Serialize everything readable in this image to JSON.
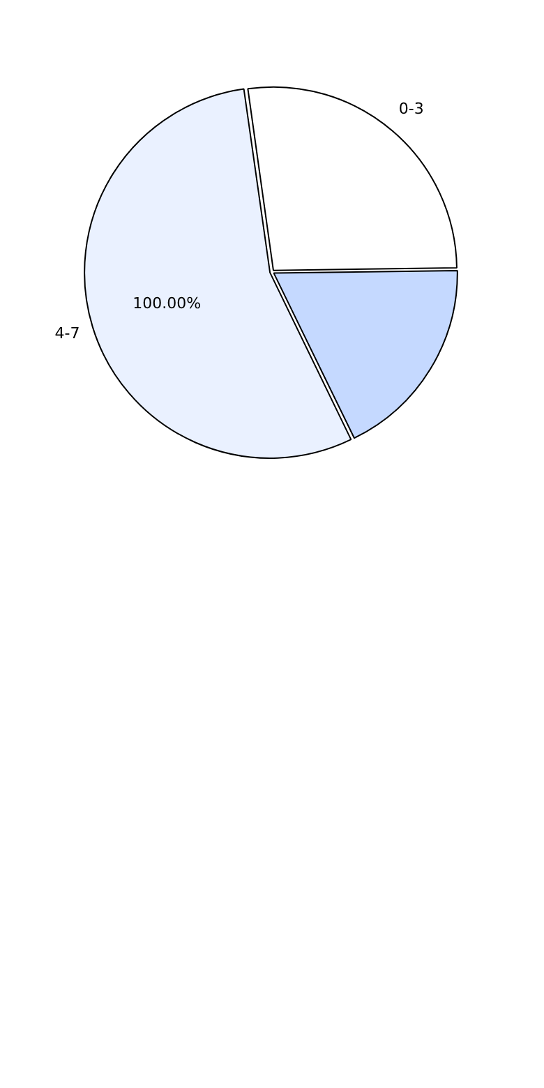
{
  "chart_data": {
    "type": "pie",
    "categories": [
      "0-3",
      null,
      "4-7"
    ],
    "values": [
      27,
      18,
      55
    ],
    "colors": [
      "#ffffff",
      "#c5d9ff",
      "#eaf1ff"
    ],
    "annotations": [
      "100.00%"
    ],
    "legend": false
  }
}
